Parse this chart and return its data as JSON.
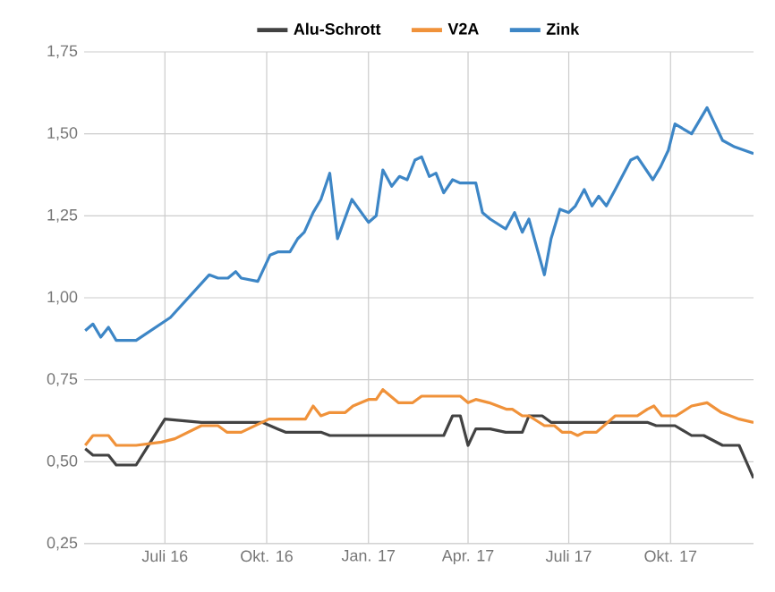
{
  "chart_data": {
    "type": "line",
    "legend": "top",
    "grid": true,
    "xlim": [
      "2016-04-19",
      "2017-12-15"
    ],
    "xticks": [
      {
        "value": "2016-07-01",
        "label": "Juli 16"
      },
      {
        "value": "2016-10-01",
        "label": "Okt. 16"
      },
      {
        "value": "2017-01-01",
        "label": "Jan. 17"
      },
      {
        "value": "2017-04-01",
        "label": "Apr. 17"
      },
      {
        "value": "2017-07-01",
        "label": "Juli 17"
      },
      {
        "value": "2017-10-01",
        "label": "Okt. 17"
      }
    ],
    "ylim": [
      0.25,
      1.75
    ],
    "yticks": [
      {
        "value": 0.25,
        "label": "0,25"
      },
      {
        "value": 0.5,
        "label": "0,50"
      },
      {
        "value": 0.75,
        "label": "0,75"
      },
      {
        "value": 1.0,
        "label": "1,00"
      },
      {
        "value": 1.25,
        "label": "1,25"
      },
      {
        "value": 1.5,
        "label": "1,50"
      },
      {
        "value": 1.75,
        "label": "1,75"
      }
    ],
    "series": [
      {
        "name": "Alu-Schrott",
        "color": "#424242",
        "x": [
          "2016-04-20",
          "2016-04-27",
          "2016-05-11",
          "2016-05-18",
          "2016-06-05",
          "2016-07-01",
          "2016-08-03",
          "2016-09-27",
          "2016-10-11",
          "2016-10-18",
          "2016-11-19",
          "2016-11-27",
          "2017-03-10",
          "2017-03-18",
          "2017-03-25",
          "2017-04-01",
          "2017-04-08",
          "2017-04-21",
          "2017-05-05",
          "2017-05-20",
          "2017-05-26",
          "2017-06-07",
          "2017-06-15",
          "2017-09-10",
          "2017-09-18",
          "2017-10-05",
          "2017-10-20",
          "2017-10-31",
          "2017-11-17",
          "2017-12-02",
          "2017-12-15"
        ],
        "values": [
          0.54,
          0.52,
          0.52,
          0.49,
          0.49,
          0.63,
          0.62,
          0.62,
          0.6,
          0.59,
          0.59,
          0.58,
          0.58,
          0.64,
          0.64,
          0.55,
          0.6,
          0.6,
          0.59,
          0.59,
          0.64,
          0.64,
          0.62,
          0.62,
          0.61,
          0.61,
          0.58,
          0.58,
          0.55,
          0.55,
          0.45
        ]
      },
      {
        "name": "V2A",
        "color": "#f0923a",
        "x": [
          "2016-04-20",
          "2016-04-27",
          "2016-05-11",
          "2016-05-18",
          "2016-06-05",
          "2016-06-28",
          "2016-07-10",
          "2016-08-03",
          "2016-08-18",
          "2016-08-26",
          "2016-09-08",
          "2016-10-03",
          "2016-11-05",
          "2016-11-12",
          "2016-11-19",
          "2016-11-27",
          "2016-12-11",
          "2016-12-18",
          "2017-01-01",
          "2017-01-08",
          "2017-01-14",
          "2017-01-28",
          "2017-02-10",
          "2017-02-18",
          "2017-03-25",
          "2017-04-01",
          "2017-04-08",
          "2017-04-20",
          "2017-05-06",
          "2017-05-11",
          "2017-05-20",
          "2017-05-26",
          "2017-06-09",
          "2017-06-18",
          "2017-06-25",
          "2017-07-03",
          "2017-07-09",
          "2017-07-15",
          "2017-07-26",
          "2017-08-12",
          "2017-09-01",
          "2017-09-10",
          "2017-09-16",
          "2017-09-23",
          "2017-10-06",
          "2017-10-20",
          "2017-11-03",
          "2017-11-16",
          "2017-12-02",
          "2017-12-15"
        ],
        "values": [
          0.55,
          0.58,
          0.58,
          0.55,
          0.55,
          0.56,
          0.57,
          0.61,
          0.61,
          0.59,
          0.59,
          0.63,
          0.63,
          0.67,
          0.64,
          0.65,
          0.65,
          0.67,
          0.69,
          0.69,
          0.72,
          0.68,
          0.68,
          0.7,
          0.7,
          0.68,
          0.69,
          0.68,
          0.66,
          0.66,
          0.64,
          0.64,
          0.61,
          0.61,
          0.59,
          0.59,
          0.58,
          0.59,
          0.59,
          0.64,
          0.64,
          0.66,
          0.67,
          0.64,
          0.64,
          0.67,
          0.68,
          0.65,
          0.63,
          0.62
        ]
      },
      {
        "name": "Zink",
        "color": "#3d86c6",
        "x": [
          "2016-04-20",
          "2016-04-27",
          "2016-05-04",
          "2016-05-11",
          "2016-05-18",
          "2016-06-05",
          "2016-07-06",
          "2016-08-10",
          "2016-08-18",
          "2016-08-27",
          "2016-09-03",
          "2016-09-08",
          "2016-09-23",
          "2016-10-04",
          "2016-10-11",
          "2016-10-22",
          "2016-10-29",
          "2016-11-04",
          "2016-11-12",
          "2016-11-19",
          "2016-11-27",
          "2016-12-04",
          "2016-12-17",
          "2017-01-01",
          "2017-01-08",
          "2017-01-14",
          "2017-01-22",
          "2017-01-29",
          "2017-02-05",
          "2017-02-12",
          "2017-02-18",
          "2017-02-25",
          "2017-03-03",
          "2017-03-10",
          "2017-03-18",
          "2017-03-25",
          "2017-04-08",
          "2017-04-14",
          "2017-04-21",
          "2017-05-05",
          "2017-05-13",
          "2017-05-20",
          "2017-05-26",
          "2017-06-09",
          "2017-06-15",
          "2017-06-23",
          "2017-07-01",
          "2017-07-07",
          "2017-07-15",
          "2017-07-22",
          "2017-07-28",
          "2017-08-04",
          "2017-08-12",
          "2017-08-26",
          "2017-09-01",
          "2017-09-15",
          "2017-09-22",
          "2017-09-29",
          "2017-10-05",
          "2017-10-20",
          "2017-11-03",
          "2017-11-17",
          "2017-11-28",
          "2017-12-15"
        ],
        "values": [
          0.9,
          0.92,
          0.88,
          0.91,
          0.87,
          0.87,
          0.94,
          1.07,
          1.06,
          1.06,
          1.08,
          1.06,
          1.05,
          1.13,
          1.14,
          1.14,
          1.18,
          1.2,
          1.26,
          1.3,
          1.38,
          1.18,
          1.3,
          1.23,
          1.25,
          1.39,
          1.34,
          1.37,
          1.36,
          1.42,
          1.43,
          1.37,
          1.38,
          1.32,
          1.36,
          1.35,
          1.35,
          1.26,
          1.24,
          1.21,
          1.26,
          1.2,
          1.24,
          1.07,
          1.18,
          1.27,
          1.26,
          1.28,
          1.33,
          1.28,
          1.31,
          1.28,
          1.33,
          1.42,
          1.43,
          1.36,
          1.4,
          1.45,
          1.53,
          1.5,
          1.58,
          1.48,
          1.46,
          1.44
        ]
      }
    ]
  }
}
